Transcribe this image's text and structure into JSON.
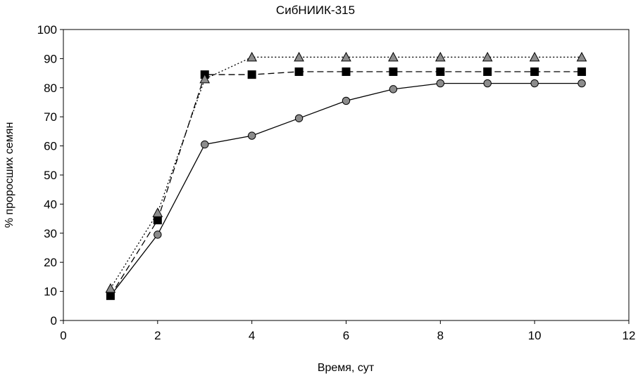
{
  "chart_data": {
    "type": "line",
    "title": "СибНИИК-315",
    "xlabel": "Время, сут",
    "ylabel": "% проросших семян",
    "xlim": [
      0,
      12
    ],
    "ylim": [
      0,
      100
    ],
    "xticks": [
      0,
      2,
      4,
      6,
      8,
      10,
      12
    ],
    "yticks": [
      0,
      10,
      20,
      30,
      40,
      50,
      60,
      70,
      80,
      90,
      100
    ],
    "grid": false,
    "series": [
      {
        "marker": "circle",
        "line_style": "solid",
        "marker_color": "#8c8c8c",
        "x": [
          1,
          2,
          3,
          4,
          5,
          6,
          7,
          8,
          9,
          10,
          11
        ],
        "y": [
          8.5,
          29.5,
          60.5,
          63.5,
          69.5,
          75.5,
          79.5,
          81.5,
          81.5,
          81.5,
          81.5
        ]
      },
      {
        "marker": "square",
        "line_style": "dashed",
        "marker_color": "#000000",
        "x": [
          1,
          2,
          3,
          4,
          5,
          6,
          7,
          8,
          9,
          10,
          11
        ],
        "y": [
          8.5,
          34.5,
          84.5,
          84.5,
          85.5,
          85.5,
          85.5,
          85.5,
          85.5,
          85.5,
          85.5
        ]
      },
      {
        "marker": "triangle",
        "line_style": "dotted",
        "marker_color": "#8c8c8c",
        "x": [
          1,
          2,
          3,
          4,
          5,
          6,
          7,
          8,
          9,
          10,
          11
        ],
        "y": [
          11,
          37,
          83,
          90.5,
          90.5,
          90.5,
          90.5,
          90.5,
          90.5,
          90.5,
          90.5
        ]
      }
    ]
  }
}
